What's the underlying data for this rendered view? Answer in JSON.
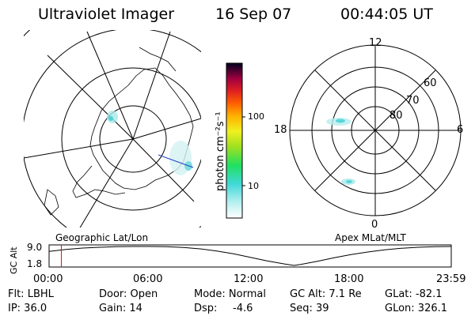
{
  "header": {
    "instrument": "Ultraviolet Imager",
    "date": "16 Sep 07",
    "time": "00:44:05 UT"
  },
  "geo_map": {
    "label": "Geographic Lat/Lon"
  },
  "polar_plot": {
    "label": "Apex MLat/MLT",
    "mlt_labels": {
      "top": "12",
      "left": "18",
      "right": "6",
      "bottom": "0"
    },
    "lat_labels": [
      "60",
      "70",
      "80"
    ]
  },
  "colorbar": {
    "unit_label": "photon cm⁻²s⁻¹",
    "ticks": [
      "100",
      "10"
    ]
  },
  "chart_data": {
    "type": "line",
    "title": "",
    "ylabel": "GC Alt",
    "ytick_labels": [
      "9.0",
      "1.8"
    ],
    "xtick_labels": [
      "00:00",
      "06:00",
      "12:00",
      "18:00",
      "23:59"
    ],
    "x_hours": [
      0,
      1,
      2,
      3,
      4,
      5,
      6,
      7,
      8,
      9,
      10,
      11,
      12,
      13,
      14,
      14.6,
      15,
      16,
      17,
      18,
      19,
      20,
      21,
      22,
      23,
      23.98
    ],
    "y": [
      7.1,
      7.9,
      8.4,
      8.7,
      8.9,
      9.0,
      9.0,
      8.9,
      8.6,
      8.1,
      7.3,
      6.2,
      4.9,
      3.5,
      2.4,
      1.8,
      2.2,
      3.4,
      4.7,
      5.9,
      6.9,
      7.7,
      8.3,
      8.7,
      8.9,
      9.0
    ],
    "ylim": [
      1.8,
      9.0
    ],
    "xlim": [
      0,
      23.98
    ],
    "current_time_hours": 0.73,
    "current_marker_color": "#ff0000"
  },
  "status": {
    "flt": "Flt: LBHL",
    "door": "Door: Open",
    "mode": "Mode: Normal",
    "gc_alt": "GC Alt: 7.1 Re",
    "glat": "GLat: -82.1",
    "ip": "IP: 36.0",
    "gain": "Gain: 14",
    "dsp_label": "Dsp:",
    "dsp_value": "-4.6",
    "seq": "Seq: 39",
    "glon": "GLon: 326.1"
  }
}
